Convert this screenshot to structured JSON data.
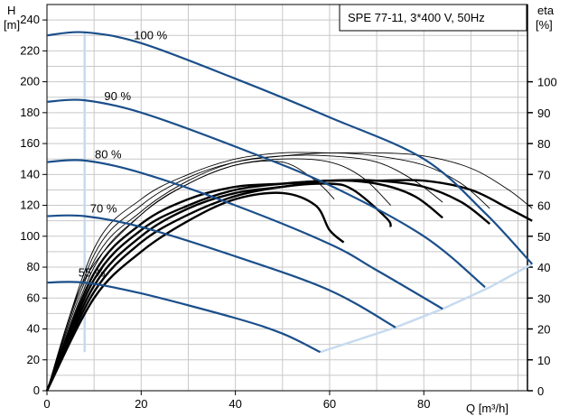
{
  "chart_data": {
    "type": "line",
    "title": "SPE 77-11, 3*400 V, 50Hz",
    "xlabel": "Q [m³/h]",
    "ylabel_left": "H",
    "ylabel_left_unit": "[m]",
    "ylabel_right": "eta",
    "ylabel_right_unit": "[%]",
    "xlim": [
      0,
      102
    ],
    "ylim_left": [
      0,
      250
    ],
    "ylim_right": [
      0,
      125
    ],
    "x_ticks": [
      0,
      20,
      40,
      60,
      80
    ],
    "y_ticks_left": [
      0,
      20,
      40,
      60,
      80,
      100,
      120,
      140,
      160,
      180,
      200,
      220,
      240
    ],
    "y_ticks_right": [
      0,
      10,
      20,
      30,
      40,
      50,
      60,
      70,
      80,
      90,
      100
    ],
    "grid": true,
    "colors": {
      "head_curve": "#1b4f8a",
      "efficiency_curve": "#000000",
      "min_flow_line": "#c7dbef",
      "end_line": "#c7dbef",
      "grid": "#c8c8c8"
    },
    "head_curves": [
      {
        "name": "100 %",
        "points": [
          [
            0,
            230
          ],
          [
            8,
            232
          ],
          [
            20,
            225
          ],
          [
            40,
            202
          ],
          [
            60,
            177
          ],
          [
            80,
            150
          ],
          [
            93,
            115
          ],
          [
            103,
            82
          ]
        ]
      },
      {
        "name": "90 %",
        "points": [
          [
            0,
            187
          ],
          [
            8,
            188
          ],
          [
            20,
            180
          ],
          [
            40,
            158
          ],
          [
            60,
            133
          ],
          [
            80,
            100
          ],
          [
            93,
            67
          ]
        ]
      },
      {
        "name": "80 %",
        "points": [
          [
            0,
            148
          ],
          [
            8,
            149
          ],
          [
            20,
            141
          ],
          [
            40,
            120
          ],
          [
            60,
            95
          ],
          [
            70,
            78
          ],
          [
            84,
            53
          ]
        ]
      },
      {
        "name": "70 %",
        "points": [
          [
            0,
            113
          ],
          [
            8,
            113
          ],
          [
            20,
            106
          ],
          [
            40,
            87
          ],
          [
            60,
            65
          ],
          [
            74,
            41
          ]
        ]
      },
      {
        "name": "55 %",
        "points": [
          [
            0,
            70
          ],
          [
            8,
            70
          ],
          [
            20,
            63
          ],
          [
            40,
            47
          ],
          [
            50,
            37
          ],
          [
            58,
            25
          ]
        ]
      }
    ],
    "efficiency_curves_bold": [
      {
        "points": [
          [
            0,
            0
          ],
          [
            10,
            30
          ],
          [
            20,
            45
          ],
          [
            30,
            55
          ],
          [
            40,
            62
          ],
          [
            50,
            64
          ],
          [
            57,
            60
          ],
          [
            60,
            52
          ],
          [
            63,
            48
          ]
        ]
      },
      {
        "points": [
          [
            0,
            0
          ],
          [
            10,
            32
          ],
          [
            20,
            48
          ],
          [
            30,
            57
          ],
          [
            40,
            63
          ],
          [
            50,
            66
          ],
          [
            60,
            67
          ],
          [
            65,
            65
          ],
          [
            72,
            56
          ],
          [
            73,
            53
          ]
        ]
      },
      {
        "points": [
          [
            0,
            0
          ],
          [
            10,
            34
          ],
          [
            20,
            50
          ],
          [
            30,
            59
          ],
          [
            40,
            64
          ],
          [
            50,
            66
          ],
          [
            60,
            68
          ],
          [
            70,
            67
          ],
          [
            78,
            63
          ],
          [
            84,
            56
          ]
        ]
      },
      {
        "points": [
          [
            0,
            0
          ],
          [
            10,
            36
          ],
          [
            20,
            52
          ],
          [
            30,
            60
          ],
          [
            40,
            65
          ],
          [
            50,
            67
          ],
          [
            60,
            68
          ],
          [
            70,
            68
          ],
          [
            80,
            66
          ],
          [
            88,
            61
          ],
          [
            94,
            54
          ]
        ]
      },
      {
        "points": [
          [
            0,
            0
          ],
          [
            10,
            38
          ],
          [
            20,
            54
          ],
          [
            30,
            62
          ],
          [
            40,
            66
          ],
          [
            50,
            67
          ],
          [
            60,
            68
          ],
          [
            70,
            68
          ],
          [
            80,
            68
          ],
          [
            90,
            65
          ],
          [
            98,
            59
          ],
          [
            103,
            55
          ]
        ]
      }
    ],
    "efficiency_curves_thin": [
      {
        "points": [
          [
            0,
            0
          ],
          [
            8,
            36
          ],
          [
            20,
            57
          ],
          [
            30,
            67
          ],
          [
            40,
            73
          ],
          [
            50,
            74
          ],
          [
            57,
            68
          ],
          [
            61,
            62
          ]
        ]
      },
      {
        "points": [
          [
            0,
            0
          ],
          [
            10,
            40
          ],
          [
            20,
            57
          ],
          [
            30,
            67
          ],
          [
            40,
            73
          ],
          [
            50,
            75
          ],
          [
            60,
            74
          ],
          [
            67,
            69
          ],
          [
            73,
            60
          ]
        ]
      },
      {
        "points": [
          [
            0,
            0
          ],
          [
            10,
            42
          ],
          [
            20,
            58
          ],
          [
            30,
            68
          ],
          [
            40,
            74
          ],
          [
            50,
            76
          ],
          [
            60,
            76
          ],
          [
            70,
            74
          ],
          [
            78,
            68
          ],
          [
            84,
            61
          ]
        ]
      },
      {
        "points": [
          [
            0,
            0
          ],
          [
            10,
            44
          ],
          [
            20,
            60
          ],
          [
            30,
            69
          ],
          [
            40,
            74
          ],
          [
            50,
            76
          ],
          [
            60,
            77
          ],
          [
            70,
            76
          ],
          [
            80,
            73
          ],
          [
            88,
            67
          ],
          [
            94,
            59
          ]
        ]
      },
      {
        "points": [
          [
            0,
            0
          ],
          [
            10,
            46
          ],
          [
            20,
            62
          ],
          [
            30,
            70
          ],
          [
            40,
            75
          ],
          [
            50,
            77
          ],
          [
            60,
            77
          ],
          [
            70,
            77
          ],
          [
            80,
            76
          ],
          [
            90,
            72
          ],
          [
            98,
            65
          ],
          [
            103,
            59
          ]
        ]
      }
    ],
    "min_flow_line": {
      "points": [
        [
          8,
          232
        ],
        [
          8,
          25
        ]
      ]
    },
    "end_of_curve_line": {
      "points": [
        [
          58,
          25
        ],
        [
          74,
          41
        ],
        [
          84,
          53
        ],
        [
          94,
          67
        ],
        [
          103,
          82
        ]
      ]
    }
  }
}
